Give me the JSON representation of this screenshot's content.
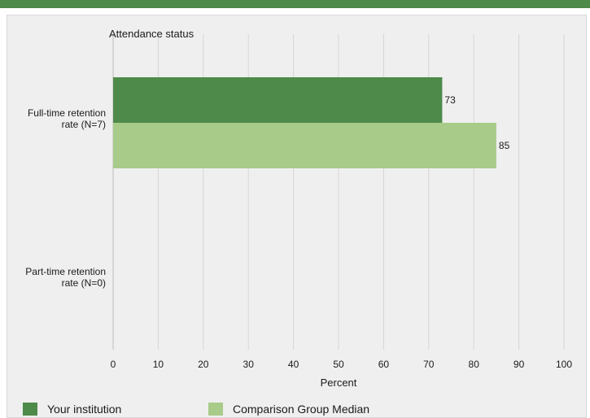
{
  "colors": {
    "accent_bar": "#4e8a4a",
    "your_institution": "#4e8a4a",
    "comparison_median": "#a8cb8a",
    "grid": "#d6d6d6",
    "panel_bg": "#efefef"
  },
  "chart_data": {
    "type": "bar",
    "orientation": "horizontal",
    "title": "Attendance status",
    "xlabel": "Percent",
    "ylabel": "",
    "xlim": [
      0,
      100
    ],
    "x_ticks": [
      0,
      10,
      20,
      30,
      40,
      50,
      60,
      70,
      80,
      90,
      100
    ],
    "categories": [
      [
        "Full-time retention",
        "rate (N=7)"
      ],
      [
        "Part-time retention",
        "rate (N=0)"
      ]
    ],
    "series": [
      {
        "name": "Your institution",
        "color": "#4e8a4a",
        "values": [
          73,
          null
        ]
      },
      {
        "name": "Comparison Group Median",
        "color": "#a8cb8a",
        "values": [
          85,
          null
        ]
      }
    ],
    "grid": true,
    "legend_position": "bottom"
  }
}
